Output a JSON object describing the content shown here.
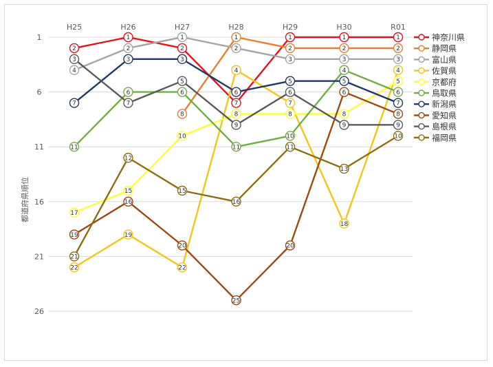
{
  "chart_data": {
    "type": "line",
    "title": "",
    "xlabel": "",
    "ylabel": "都道府県順位",
    "categories": [
      "H25",
      "H26",
      "H27",
      "H28",
      "H29",
      "H30",
      "R01"
    ],
    "y_axis": {
      "reversed": true,
      "ylim": [
        1,
        26
      ],
      "ticks": [
        1,
        6,
        11,
        16,
        21,
        26
      ]
    },
    "grid": true,
    "legend": "right",
    "series": [
      {
        "name": "神奈川県",
        "color": "#e8101a",
        "values": [
          2,
          1,
          2,
          7,
          1,
          1,
          1
        ]
      },
      {
        "name": "静岡県",
        "color": "#ed7d31",
        "values": [
          null,
          null,
          8,
          1,
          2,
          2,
          2
        ]
      },
      {
        "name": "富山県",
        "color": "#a5a5a5",
        "values": [
          4,
          2,
          1,
          2,
          3,
          3,
          3
        ]
      },
      {
        "name": "佐賀県",
        "color": "#f5c518",
        "values": [
          22,
          19,
          22,
          4,
          7,
          18,
          4
        ]
      },
      {
        "name": "京都府",
        "color": "#ffff33",
        "values": [
          17,
          15,
          10,
          8,
          8,
          8,
          5
        ]
      },
      {
        "name": "鳥取県",
        "color": "#70ad47",
        "values": [
          11,
          6,
          6,
          11,
          10,
          4,
          6
        ]
      },
      {
        "name": "新潟県",
        "color": "#1f3864",
        "values": [
          7,
          3,
          3,
          6,
          5,
          5,
          7
        ]
      },
      {
        "name": "愛知県",
        "color": "#9e480e",
        "values": [
          19,
          16,
          20,
          25,
          20,
          6,
          8
        ]
      },
      {
        "name": "島根県",
        "color": "#595959",
        "values": [
          3,
          7,
          5,
          9,
          6,
          9,
          9
        ]
      },
      {
        "name": "福岡県",
        "color": "#8c6d10",
        "values": [
          21,
          12,
          15,
          16,
          11,
          13,
          10
        ]
      }
    ]
  }
}
